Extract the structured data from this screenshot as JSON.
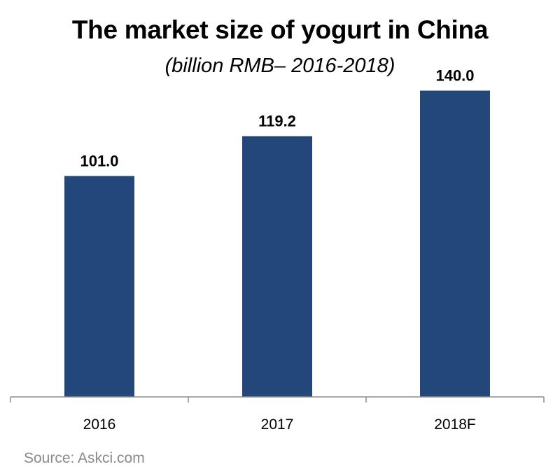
{
  "chart_data": {
    "type": "bar",
    "title": "The market size of yogurt in China",
    "subtitle": "(billion RMB– 2016-2018)",
    "categories": [
      "2016",
      "2017",
      "2018F"
    ],
    "values": [
      101.0,
      119.2,
      140.0
    ],
    "data_labels": [
      "101.0",
      "119.2",
      "140.0"
    ],
    "ylim": [
      0,
      160
    ],
    "grid": false,
    "legend": "none",
    "xlabel": "",
    "ylabel": ""
  },
  "source": "Source: Askci.com",
  "colors": {
    "bar": "#24477a",
    "axis": "#8c8c8c",
    "text": "#000000",
    "source": "#8a8a8a"
  }
}
